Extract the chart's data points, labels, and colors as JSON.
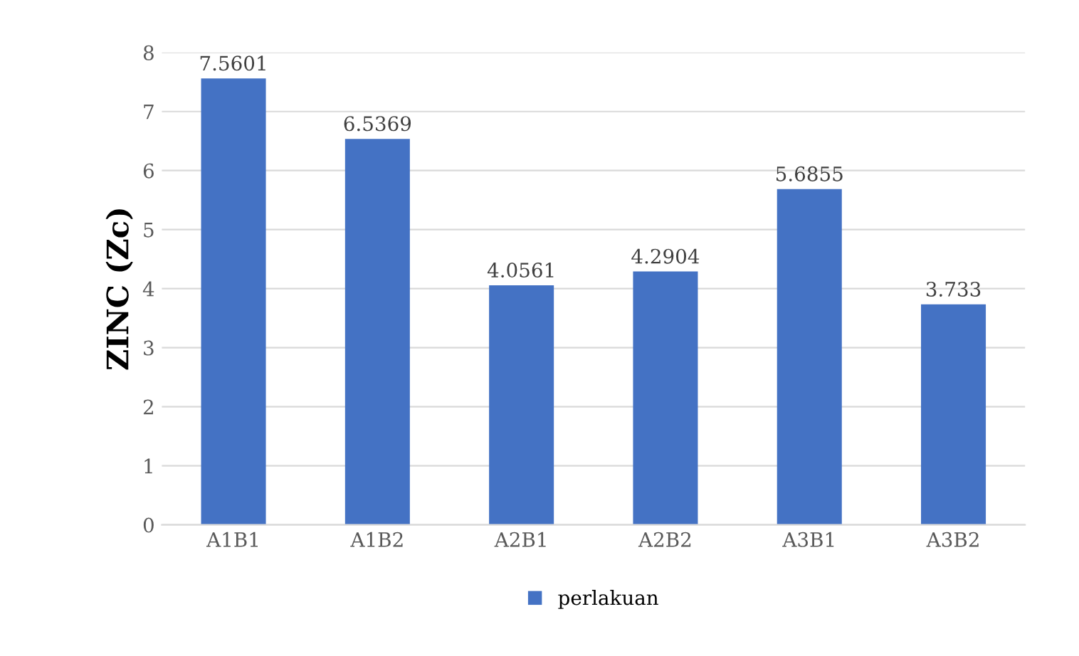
{
  "chart_data": {
    "type": "bar",
    "ylabel": "ZINC (Zc)",
    "categories": [
      "A1B1",
      "A1B2",
      "A2B1",
      "A2B2",
      "A3B1",
      "A3B2"
    ],
    "series": [
      {
        "name": "perlakuan",
        "color": "#4472c4",
        "values": [
          7.5601,
          6.5369,
          4.0561,
          4.2904,
          5.6855,
          3.733
        ]
      }
    ],
    "ylim": [
      0,
      8
    ],
    "yticks": [
      0,
      1,
      2,
      3,
      4,
      5,
      6,
      7,
      8
    ],
    "grid": "y",
    "legend": "bottom",
    "data_labels": true
  }
}
